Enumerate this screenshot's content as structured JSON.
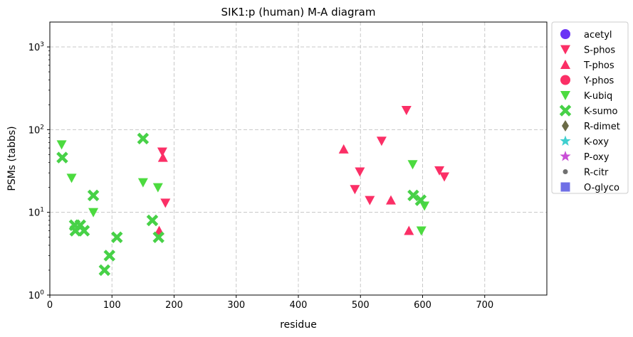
{
  "chart_data": {
    "type": "scatter",
    "title": "SIK1:p (human) M-A diagram",
    "xlabel": "residue",
    "ylabel": "PSMs (tabbs)",
    "xlim": [
      0,
      800
    ],
    "ylim": [
      1,
      2000
    ],
    "yscale": "log",
    "x_ticks": [
      0,
      100,
      200,
      300,
      400,
      500,
      600,
      700
    ],
    "x_tick_labels": [
      "0",
      "100",
      "200",
      "300",
      "400",
      "500",
      "600",
      "700"
    ],
    "y_ticks": [
      1,
      10,
      100,
      1000
    ],
    "y_tick_labels": [
      [
        "10",
        "0"
      ],
      [
        "10",
        "1"
      ],
      [
        "10",
        "2"
      ],
      [
        "10",
        "3"
      ]
    ],
    "grid": true,
    "grid_style": "dashed",
    "legend_position": "outside-right",
    "series": [
      {
        "name": "acetyl",
        "marker": "circle",
        "color": "#6a33f5",
        "points": []
      },
      {
        "name": "S-phos",
        "marker": "triangle-down",
        "color": "#fb2f66",
        "points": [
          [
            181,
            54
          ],
          [
            186,
            13
          ],
          [
            491,
            19
          ],
          [
            499,
            31
          ],
          [
            515,
            14
          ],
          [
            534,
            73
          ],
          [
            574,
            172
          ],
          [
            627,
            32
          ],
          [
            635,
            27
          ]
        ]
      },
      {
        "name": "T-phos",
        "marker": "triangle-up",
        "color": "#fb2f66",
        "points": [
          [
            176,
            6
          ],
          [
            182,
            46
          ],
          [
            473,
            58
          ],
          [
            549,
            14
          ],
          [
            578,
            6
          ]
        ]
      },
      {
        "name": "Y-phos",
        "marker": "circle",
        "color": "#fb2f66",
        "points": []
      },
      {
        "name": "K-ubiq",
        "marker": "triangle-down",
        "color": "#4cdb3f",
        "points": [
          [
            19,
            66
          ],
          [
            35,
            26
          ],
          [
            70,
            10
          ],
          [
            150,
            23
          ],
          [
            174,
            20
          ],
          [
            584,
            38
          ],
          [
            598,
            6
          ],
          [
            603,
            12
          ]
        ]
      },
      {
        "name": "K-sumo",
        "marker": "x-filled",
        "color": "#47d147",
        "points": [
          [
            20,
            46
          ],
          [
            40,
            7
          ],
          [
            41,
            6
          ],
          [
            49,
            7
          ],
          [
            55,
            6
          ],
          [
            70,
            16
          ],
          [
            88,
            2
          ],
          [
            96,
            3
          ],
          [
            108,
            5
          ],
          [
            150,
            78
          ],
          [
            165,
            8
          ],
          [
            175,
            5
          ],
          [
            585,
            16
          ],
          [
            597,
            14
          ]
        ]
      },
      {
        "name": "R-dimet",
        "marker": "diamond",
        "color": "#6b6b47",
        "points": []
      },
      {
        "name": "K-oxy",
        "marker": "star",
        "color": "#3fcfcf",
        "points": []
      },
      {
        "name": "P-oxy",
        "marker": "star",
        "color": "#c94fd6",
        "points": []
      },
      {
        "name": "R-citr",
        "marker": "dot",
        "color": "#707070",
        "points": []
      },
      {
        "name": "O-glyco",
        "marker": "square",
        "color": "#7070e6",
        "points": []
      }
    ]
  }
}
